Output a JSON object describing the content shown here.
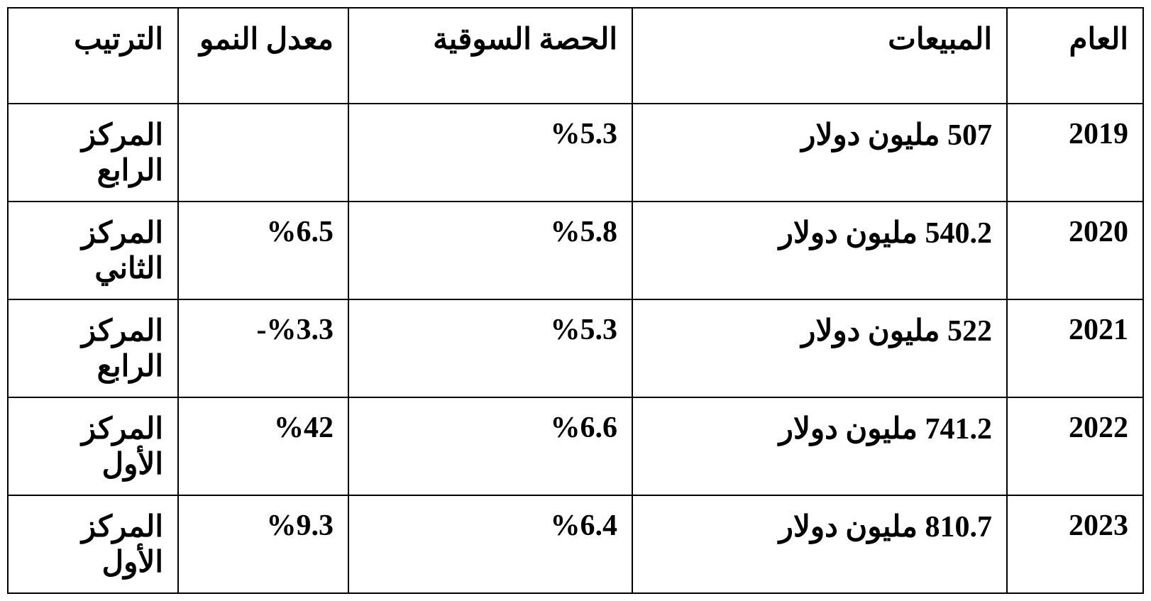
{
  "table": {
    "columns": [
      {
        "key": "year",
        "label": "العام",
        "class": "col-year"
      },
      {
        "key": "sales",
        "label": "المبيعات",
        "class": "col-sales"
      },
      {
        "key": "market_share",
        "label": "الحصة السوقية",
        "class": "col-share"
      },
      {
        "key": "growth_rate",
        "label": "معدل النمو",
        "class": "col-growth"
      },
      {
        "key": "rank",
        "label": "الترتيب",
        "class": "col-rank"
      }
    ],
    "rows": [
      {
        "year": "2019",
        "sales": "507 مليون دولار",
        "market_share": "%5.3",
        "growth_rate": "",
        "rank": "المركز الرابع"
      },
      {
        "year": "2020",
        "sales": "540.2 مليون دولار",
        "market_share": "%5.8",
        "growth_rate": "%6.5",
        "rank": "المركز الثاني"
      },
      {
        "year": "2021",
        "sales": "522 مليون دولار",
        "market_share": "%5.3",
        "growth_rate": "%3.3-",
        "rank": "المركز الرابع"
      },
      {
        "year": "2022",
        "sales": "741.2 مليون دولار",
        "market_share": "%6.6",
        "growth_rate": "%42",
        "rank": "المركز الأول"
      },
      {
        "year": "2023",
        "sales": "810.7 مليون دولار",
        "market_share": "%6.4",
        "growth_rate": "%9.3",
        "rank": "المركز الأول"
      }
    ],
    "border_color": "#000000",
    "background_color": "#ffffff",
    "text_color": "#000000",
    "font_weight": "bold",
    "font_size_pt": 32,
    "cell_alignment": "right",
    "direction": "rtl"
  }
}
